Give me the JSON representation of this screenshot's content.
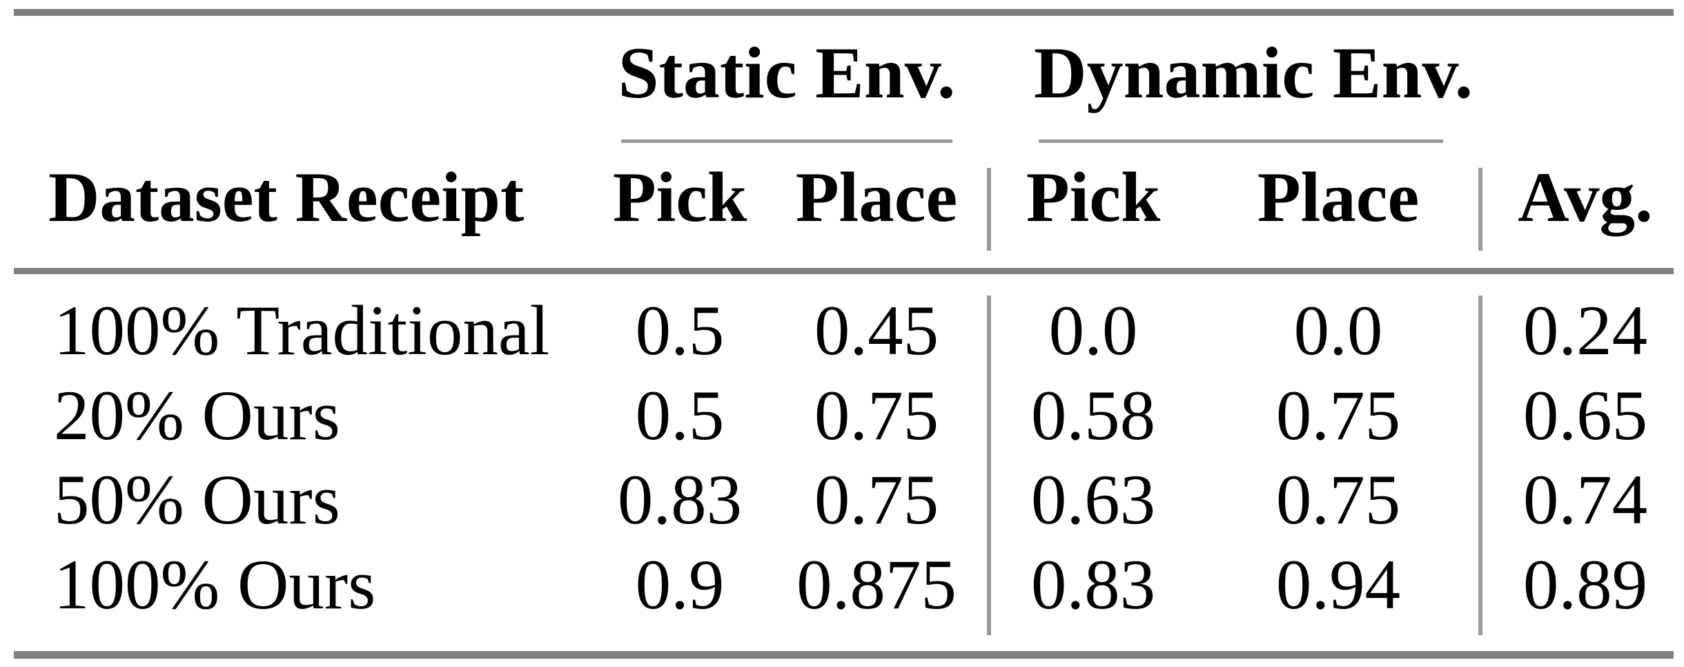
{
  "table": {
    "group_headers": [
      {
        "label": "Static Env."
      },
      {
        "label": "Dynamic Env."
      }
    ],
    "row_header": "Dataset Receipt",
    "column_headers": [
      "Pick",
      "Place",
      "Pick",
      "Place",
      "Avg."
    ],
    "rows": [
      {
        "label": "100% Traditional",
        "values": [
          "0.5",
          "0.45",
          "0.0",
          "0.0",
          "0.24"
        ]
      },
      {
        "label": "20% Ours",
        "values": [
          "0.5",
          "0.75",
          "0.58",
          "0.75",
          "0.65"
        ]
      },
      {
        "label": "50% Ours",
        "values": [
          "0.83",
          "0.75",
          "0.63",
          "0.75",
          "0.74"
        ]
      },
      {
        "label": "100% Ours",
        "values": [
          "0.9",
          "0.875",
          "0.83",
          "0.94",
          "0.89"
        ]
      }
    ],
    "colors": {
      "rule_thick": "#7f7f7f",
      "rule_thin": "#999999",
      "text": "#000000",
      "background": "#ffffff"
    }
  }
}
